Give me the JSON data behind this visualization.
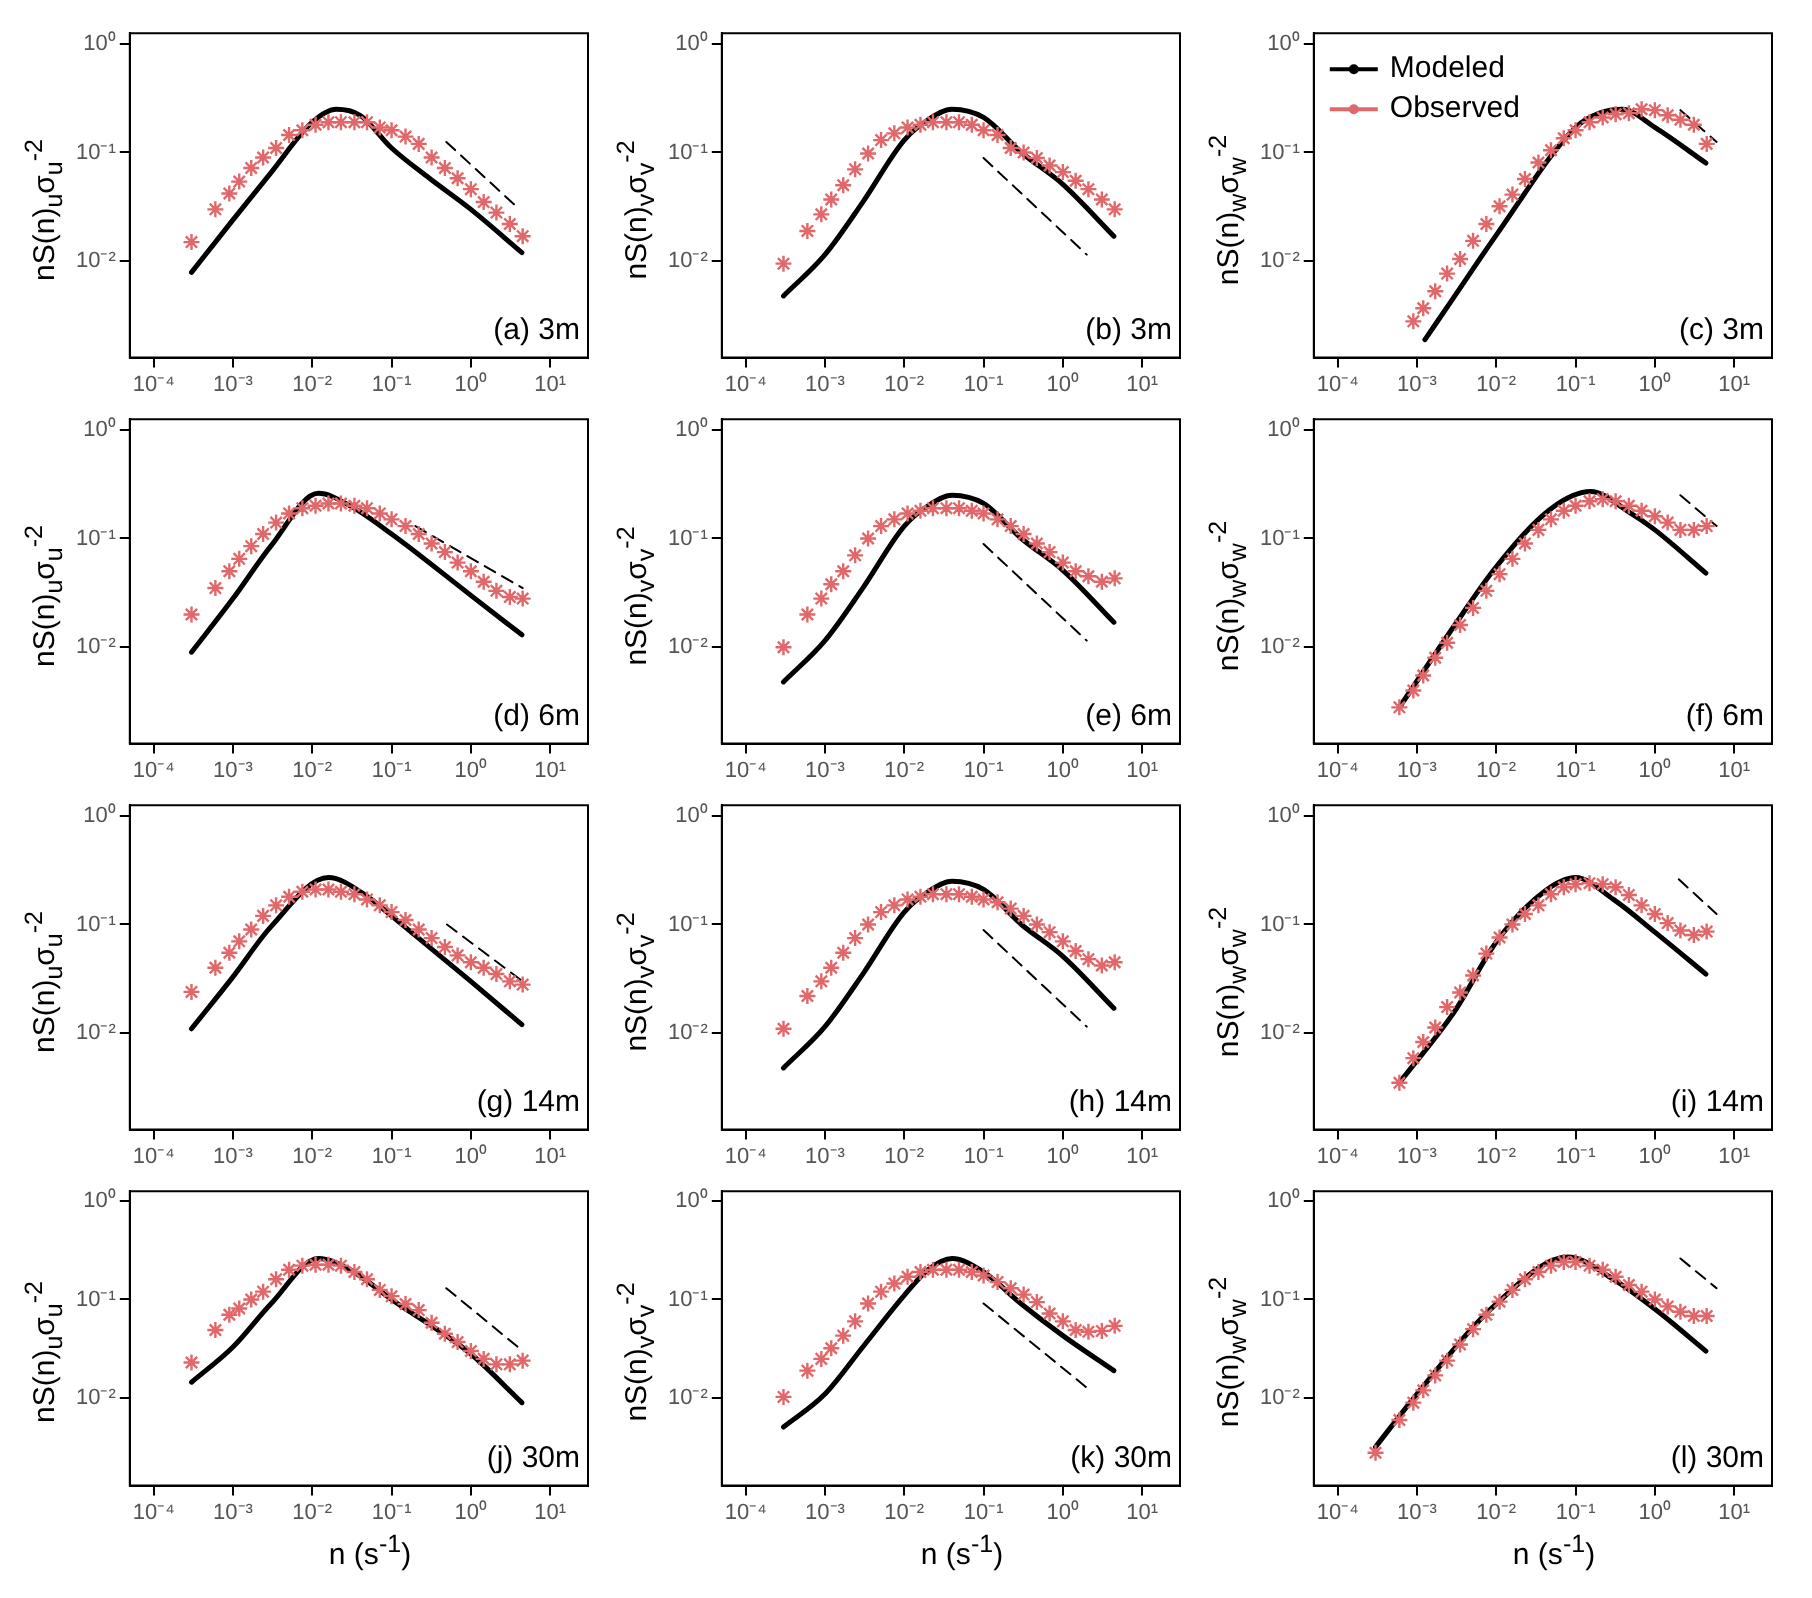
{
  "chart_data": [
    {
      "type": "line",
      "ylabel": "nS(n)$_{u}$σ$_{u}$$^{-2}$",
      "annotations": [
        "(a) 3m"
      ],
      "log": "xy",
      "xlim": [
        5e-05,
        30
      ],
      "ylim": [
        0.0013,
        1.25
      ],
      "xticks": [
        {
          "value": 0.0001,
          "label": "10⁻⁴"
        },
        {
          "value": 0.001,
          "label": "10⁻³"
        },
        {
          "value": 0.01,
          "label": "10⁻²"
        },
        {
          "value": 0.1,
          "label": "10⁻¹"
        },
        {
          "value": 1,
          "label": "10⁰"
        },
        {
          "value": 10,
          "label": "10¹"
        }
      ],
      "yticks": [
        {
          "value": 0.01,
          "label": "10⁻²"
        },
        {
          "value": 0.1,
          "label": "10⁻¹"
        },
        {
          "value": 1,
          "label": "10⁰"
        }
      ],
      "x": [
        0.0003,
        0.0006,
        0.0009,
        0.0012,
        0.0017,
        0.0024,
        0.0035,
        0.0051,
        0.0075,
        0.011,
        0.016,
        0.023,
        0.034,
        0.049,
        0.071,
        0.1,
        0.15,
        0.22,
        0.32,
        0.47,
        0.68,
        1,
        1.45,
        2.1,
        3.1,
        4.5
      ],
      "series": [
        {
          "type": "line",
          "color": "#000000",
          "marker": "none",
          "x": [
            0.0003,
            0.001,
            0.003,
            0.01,
            0.02,
            0.04,
            0.1,
            0.3,
            1,
            4.4
          ],
          "values": [
            0.0079,
            0.024,
            0.065,
            0.19,
            0.25,
            0.22,
            0.11,
            0.058,
            0.03,
            0.012
          ]
        },
        {
          "type": "scatter",
          "color": "#e0686b",
          "marker": "cross",
          "values": [
            0.015,
            0.03,
            0.042,
            0.054,
            0.072,
            0.09,
            0.11,
            0.145,
            0.16,
            0.18,
            0.19,
            0.19,
            0.19,
            0.19,
            0.17,
            0.16,
            0.14,
            0.12,
            0.09,
            0.072,
            0.058,
            0.046,
            0.035,
            0.028,
            0.022,
            0.017
          ]
        },
        {
          "type": "line",
          "color": "#000000",
          "marker": "none",
          "line_style": "dashed",
          "x": [
            0.49,
            4.1
          ],
          "values": [
            0.125,
            0.03
          ]
        }
      ]
    },
    {
      "type": "line",
      "ylabel": "nS(n)$_{v}$σ$_{v}$$^{-2}$",
      "annotations": [
        "(b) 3m"
      ],
      "log": "xy",
      "xlim": [
        5e-05,
        30
      ],
      "ylim": [
        0.0013,
        1.25
      ],
      "xticks": [
        {
          "value": 0.0001,
          "label": "10⁻⁴"
        },
        {
          "value": 0.001,
          "label": "10⁻³"
        },
        {
          "value": 0.01,
          "label": "10⁻²"
        },
        {
          "value": 0.1,
          "label": "10⁻¹"
        },
        {
          "value": 1,
          "label": "10⁰"
        },
        {
          "value": 10,
          "label": "10¹"
        }
      ],
      "yticks": [
        {
          "value": 0.01,
          "label": "10⁻²"
        },
        {
          "value": 0.1,
          "label": "10⁻¹"
        },
        {
          "value": 1,
          "label": "10⁰"
        }
      ],
      "x": [
        0.0003,
        0.0006,
        0.0009,
        0.0012,
        0.0017,
        0.0024,
        0.0035,
        0.0051,
        0.0075,
        0.011,
        0.016,
        0.023,
        0.034,
        0.049,
        0.071,
        0.1,
        0.15,
        0.22,
        0.32,
        0.47,
        0.68,
        1,
        1.45,
        2.1,
        3.1,
        4.5
      ],
      "series": [
        {
          "type": "line",
          "color": "#000000",
          "marker": "none",
          "x": [
            0.0003,
            0.001,
            0.003,
            0.01,
            0.02,
            0.04,
            0.1,
            0.3,
            1,
            4.4
          ],
          "values": [
            0.0048,
            0.0115,
            0.035,
            0.13,
            0.2,
            0.25,
            0.21,
            0.1,
            0.051,
            0.017
          ]
        },
        {
          "type": "scatter",
          "color": "#e0686b",
          "marker": "cross",
          "values": [
            0.0095,
            0.019,
            0.027,
            0.037,
            0.05,
            0.07,
            0.098,
            0.13,
            0.15,
            0.17,
            0.18,
            0.19,
            0.19,
            0.19,
            0.18,
            0.16,
            0.145,
            0.11,
            0.1,
            0.089,
            0.076,
            0.066,
            0.055,
            0.046,
            0.037,
            0.03
          ]
        },
        {
          "type": "line",
          "color": "#000000",
          "marker": "none",
          "line_style": "dashed",
          "x": [
            0.1,
            2
          ],
          "values": [
            0.089,
            0.0115
          ]
        }
      ]
    },
    {
      "type": "line",
      "ylabel": "nS(n)$_{w}$σ$_{w}$$^{-2}$",
      "annotations": [
        "(c) 3m"
      ],
      "legend": "top left",
      "log": "xy",
      "xlim": [
        5e-05,
        30
      ],
      "ylim": [
        0.0013,
        1.25
      ],
      "xticks": [
        {
          "value": 0.0001,
          "label": "10⁻⁴"
        },
        {
          "value": 0.001,
          "label": "10⁻³"
        },
        {
          "value": 0.01,
          "label": "10⁻²"
        },
        {
          "value": 0.1,
          "label": "10⁻¹"
        },
        {
          "value": 1,
          "label": "10⁰"
        },
        {
          "value": 10,
          "label": "10¹"
        }
      ],
      "yticks": [
        {
          "value": 0.01,
          "label": "10⁻²"
        },
        {
          "value": 0.1,
          "label": "10⁻¹"
        },
        {
          "value": 1,
          "label": "10⁰"
        }
      ],
      "x": [
        0.0009,
        0.0012,
        0.0017,
        0.0024,
        0.0035,
        0.0051,
        0.0075,
        0.011,
        0.016,
        0.023,
        0.034,
        0.049,
        0.071,
        0.1,
        0.15,
        0.22,
        0.32,
        0.47,
        0.68,
        1,
        1.45,
        2.1,
        3.1,
        4.5
      ],
      "series": [
        {
          "type": "line",
          "name": "Modeled",
          "color": "#000000",
          "marker": "none",
          "x": [
            0.00126,
            0.003,
            0.01,
            0.1,
            0.2,
            0.39,
            1,
            4.4
          ],
          "values": [
            0.0019,
            0.0048,
            0.0174,
            0.17,
            0.23,
            0.25,
            0.17,
            0.08
          ]
        },
        {
          "type": "scatter",
          "name": "Observed",
          "color": "#e0686b",
          "marker": "cross",
          "values": [
            0.0028,
            0.0037,
            0.0053,
            0.0077,
            0.0105,
            0.0154,
            0.022,
            0.032,
            0.041,
            0.057,
            0.081,
            0.105,
            0.135,
            0.16,
            0.19,
            0.21,
            0.225,
            0.23,
            0.25,
            0.245,
            0.22,
            0.2,
            0.18,
            0.12
          ]
        },
        {
          "type": "line",
          "color": "#000000",
          "marker": "none",
          "line_style": "dashed",
          "x": [
            2.1,
            6
          ],
          "values": [
            0.245,
            0.125
          ]
        }
      ]
    },
    {
      "type": "line",
      "ylabel": "nS(n)$_{u}$σ$_{u}$$^{-2}$",
      "annotations": [
        "(d) 6m"
      ],
      "log": "xy",
      "xlim": [
        5e-05,
        30
      ],
      "ylim": [
        0.0013,
        1.25
      ],
      "xticks": [
        {
          "value": 0.0001,
          "label": "10⁻⁴"
        },
        {
          "value": 0.001,
          "label": "10⁻³"
        },
        {
          "value": 0.01,
          "label": "10⁻²"
        },
        {
          "value": 0.1,
          "label": "10⁻¹"
        },
        {
          "value": 1,
          "label": "10⁰"
        },
        {
          "value": 10,
          "label": "10¹"
        }
      ],
      "yticks": [
        {
          "value": 0.01,
          "label": "10⁻²"
        },
        {
          "value": 0.1,
          "label": "10⁻¹"
        },
        {
          "value": 1,
          "label": "10⁰"
        }
      ],
      "x": [
        0.0003,
        0.0006,
        0.0009,
        0.0012,
        0.0017,
        0.0024,
        0.0035,
        0.0051,
        0.0075,
        0.011,
        0.016,
        0.023,
        0.034,
        0.049,
        0.071,
        0.1,
        0.15,
        0.22,
        0.32,
        0.47,
        0.68,
        1,
        1.45,
        2.1,
        3.1,
        4.5
      ],
      "series": [
        {
          "type": "line",
          "color": "#000000",
          "marker": "none",
          "x": [
            0.0003,
            0.001,
            0.003,
            0.012,
            0.03,
            0.1,
            1,
            4.4
          ],
          "values": [
            0.009,
            0.028,
            0.085,
            0.26,
            0.2,
            0.11,
            0.03,
            0.013
          ]
        },
        {
          "type": "scatter",
          "color": "#e0686b",
          "marker": "cross",
          "values": [
            0.02,
            0.035,
            0.05,
            0.065,
            0.085,
            0.11,
            0.14,
            0.17,
            0.19,
            0.2,
            0.21,
            0.21,
            0.2,
            0.19,
            0.17,
            0.15,
            0.13,
            0.11,
            0.09,
            0.075,
            0.06,
            0.05,
            0.04,
            0.033,
            0.029,
            0.028
          ]
        },
        {
          "type": "line",
          "color": "#000000",
          "marker": "none",
          "line_style": "dashed",
          "x": [
            0.2,
            4.5
          ],
          "values": [
            0.13,
            0.035
          ]
        }
      ]
    },
    {
      "type": "line",
      "ylabel": "nS(n)$_{v}$σ$_{v}$$^{-2}$",
      "annotations": [
        "(e) 6m"
      ],
      "log": "xy",
      "xlim": [
        5e-05,
        30
      ],
      "ylim": [
        0.0013,
        1.25
      ],
      "xticks": [
        {
          "value": 0.0001,
          "label": "10⁻⁴"
        },
        {
          "value": 0.001,
          "label": "10⁻³"
        },
        {
          "value": 0.01,
          "label": "10⁻²"
        },
        {
          "value": 0.1,
          "label": "10⁻¹"
        },
        {
          "value": 1,
          "label": "10⁰"
        },
        {
          "value": 10,
          "label": "10¹"
        }
      ],
      "yticks": [
        {
          "value": 0.01,
          "label": "10⁻²"
        },
        {
          "value": 0.1,
          "label": "10⁻¹"
        },
        {
          "value": 1,
          "label": "10⁰"
        }
      ],
      "x": [
        0.0003,
        0.0006,
        0.0009,
        0.0012,
        0.0017,
        0.0024,
        0.0035,
        0.0051,
        0.0075,
        0.011,
        0.016,
        0.023,
        0.034,
        0.049,
        0.071,
        0.1,
        0.15,
        0.22,
        0.32,
        0.47,
        0.68,
        1,
        1.45,
        2.1,
        3.1,
        4.5
      ],
      "series": [
        {
          "type": "line",
          "color": "#000000",
          "marker": "none",
          "x": [
            0.0003,
            0.001,
            0.003,
            0.01,
            0.02,
            0.04,
            0.1,
            0.3,
            1,
            4.4
          ],
          "values": [
            0.0048,
            0.0115,
            0.035,
            0.13,
            0.2,
            0.25,
            0.21,
            0.1,
            0.051,
            0.017
          ]
        },
        {
          "type": "scatter",
          "color": "#e0686b",
          "marker": "cross",
          "values": [
            0.01,
            0.02,
            0.028,
            0.038,
            0.05,
            0.07,
            0.1,
            0.13,
            0.15,
            0.17,
            0.18,
            0.19,
            0.19,
            0.19,
            0.18,
            0.17,
            0.15,
            0.13,
            0.11,
            0.09,
            0.075,
            0.06,
            0.05,
            0.045,
            0.04,
            0.043
          ]
        },
        {
          "type": "line",
          "color": "#000000",
          "marker": "none",
          "line_style": "dashed",
          "x": [
            0.1,
            2
          ],
          "values": [
            0.089,
            0.0115
          ]
        }
      ]
    },
    {
      "type": "line",
      "ylabel": "nS(n)$_{w}$σ$_{w}$$^{-2}$",
      "annotations": [
        "(f) 6m"
      ],
      "log": "xy",
      "xlim": [
        5e-05,
        30
      ],
      "ylim": [
        0.0013,
        1.25
      ],
      "xticks": [
        {
          "value": 0.0001,
          "label": "10⁻⁴"
        },
        {
          "value": 0.001,
          "label": "10⁻³"
        },
        {
          "value": 0.01,
          "label": "10⁻²"
        },
        {
          "value": 0.1,
          "label": "10⁻¹"
        },
        {
          "value": 1,
          "label": "10⁰"
        },
        {
          "value": 10,
          "label": "10¹"
        }
      ],
      "yticks": [
        {
          "value": 0.01,
          "label": "10⁻²"
        },
        {
          "value": 0.1,
          "label": "10⁻¹"
        },
        {
          "value": 1,
          "label": "10⁰"
        }
      ],
      "x": [
        0.0006,
        0.0009,
        0.0012,
        0.0017,
        0.0024,
        0.0035,
        0.0051,
        0.0075,
        0.011,
        0.016,
        0.023,
        0.034,
        0.049,
        0.071,
        0.1,
        0.15,
        0.22,
        0.32,
        0.47,
        0.68,
        1,
        1.45,
        2.1,
        3.1,
        4.5
      ],
      "series": [
        {
          "type": "line",
          "color": "#000000",
          "marker": "none",
          "x": [
            0.0006,
            0.003,
            0.01,
            0.05,
            0.155,
            0.5,
            1,
            4.4
          ],
          "values": [
            0.0028,
            0.016,
            0.055,
            0.19,
            0.27,
            0.17,
            0.12,
            0.048
          ]
        },
        {
          "type": "scatter",
          "color": "#e0686b",
          "marker": "cross",
          "values": [
            0.0028,
            0.004,
            0.0055,
            0.008,
            0.011,
            0.016,
            0.023,
            0.033,
            0.047,
            0.065,
            0.09,
            0.12,
            0.15,
            0.18,
            0.2,
            0.22,
            0.23,
            0.22,
            0.2,
            0.18,
            0.16,
            0.14,
            0.12,
            0.12,
            0.13
          ]
        },
        {
          "type": "line",
          "color": "#000000",
          "marker": "none",
          "line_style": "dashed",
          "x": [
            2.1,
            6
          ],
          "values": [
            0.25,
            0.13
          ]
        }
      ]
    },
    {
      "type": "line",
      "ylabel": "nS(n)$_{u}$σ$_{u}$$^{-2}$",
      "annotations": [
        "(g) 14m"
      ],
      "log": "xy",
      "xlim": [
        5e-05,
        30
      ],
      "ylim": [
        0.0013,
        1.25
      ],
      "xticks": [
        {
          "value": 0.0001,
          "label": "10⁻⁴"
        },
        {
          "value": 0.001,
          "label": "10⁻³"
        },
        {
          "value": 0.01,
          "label": "10⁻²"
        },
        {
          "value": 0.1,
          "label": "10⁻¹"
        },
        {
          "value": 1,
          "label": "10⁰"
        },
        {
          "value": 10,
          "label": "10¹"
        }
      ],
      "yticks": [
        {
          "value": 0.01,
          "label": "10⁻²"
        },
        {
          "value": 0.1,
          "label": "10⁻¹"
        },
        {
          "value": 1,
          "label": "10⁰"
        }
      ],
      "x": [
        0.0003,
        0.0006,
        0.0009,
        0.0012,
        0.0017,
        0.0024,
        0.0035,
        0.0051,
        0.0075,
        0.011,
        0.016,
        0.023,
        0.034,
        0.049,
        0.071,
        0.1,
        0.15,
        0.22,
        0.32,
        0.47,
        0.68,
        1,
        1.45,
        2.1,
        3.1,
        4.5
      ],
      "series": [
        {
          "type": "line",
          "color": "#000000",
          "marker": "none",
          "x": [
            0.0003,
            0.001,
            0.003,
            0.016,
            0.05,
            0.1,
            1,
            4.4
          ],
          "values": [
            0.011,
            0.033,
            0.095,
            0.27,
            0.18,
            0.12,
            0.03,
            0.012
          ]
        },
        {
          "type": "scatter",
          "color": "#e0686b",
          "marker": "cross",
          "values": [
            0.024,
            0.04,
            0.055,
            0.07,
            0.09,
            0.12,
            0.15,
            0.18,
            0.2,
            0.21,
            0.21,
            0.2,
            0.19,
            0.17,
            0.15,
            0.13,
            0.11,
            0.09,
            0.075,
            0.062,
            0.052,
            0.045,
            0.04,
            0.035,
            0.03,
            0.028
          ]
        },
        {
          "type": "line",
          "color": "#000000",
          "marker": "none",
          "line_style": "dashed",
          "x": [
            0.5,
            4.5
          ],
          "values": [
            0.1,
            0.03
          ]
        }
      ]
    },
    {
      "type": "line",
      "ylabel": "nS(n)$_{v}$σ$_{v}$$^{-2}$",
      "annotations": [
        "(h) 14m"
      ],
      "log": "xy",
      "xlim": [
        5e-05,
        30
      ],
      "ylim": [
        0.0013,
        1.25
      ],
      "xticks": [
        {
          "value": 0.0001,
          "label": "10⁻⁴"
        },
        {
          "value": 0.001,
          "label": "10⁻³"
        },
        {
          "value": 0.01,
          "label": "10⁻²"
        },
        {
          "value": 0.1,
          "label": "10⁻¹"
        },
        {
          "value": 1,
          "label": "10⁰"
        },
        {
          "value": 10,
          "label": "10¹"
        }
      ],
      "yticks": [
        {
          "value": 0.01,
          "label": "10⁻²"
        },
        {
          "value": 0.1,
          "label": "10⁻¹"
        },
        {
          "value": 1,
          "label": "10⁰"
        }
      ],
      "x": [
        0.0003,
        0.0006,
        0.0009,
        0.0012,
        0.0017,
        0.0024,
        0.0035,
        0.0051,
        0.0075,
        0.011,
        0.016,
        0.023,
        0.034,
        0.049,
        0.071,
        0.1,
        0.15,
        0.22,
        0.32,
        0.47,
        0.68,
        1,
        1.45,
        2.1,
        3.1,
        4.5
      ],
      "series": [
        {
          "type": "line",
          "color": "#000000",
          "marker": "none",
          "x": [
            0.0003,
            0.001,
            0.003,
            0.01,
            0.02,
            0.04,
            0.1,
            0.3,
            1,
            4.4
          ],
          "values": [
            0.0048,
            0.0115,
            0.035,
            0.13,
            0.2,
            0.25,
            0.21,
            0.1,
            0.051,
            0.017
          ]
        },
        {
          "type": "scatter",
          "color": "#e0686b",
          "marker": "cross",
          "values": [
            0.011,
            0.022,
            0.03,
            0.04,
            0.055,
            0.075,
            0.1,
            0.13,
            0.15,
            0.17,
            0.18,
            0.19,
            0.19,
            0.19,
            0.18,
            0.17,
            0.16,
            0.14,
            0.12,
            0.1,
            0.085,
            0.07,
            0.057,
            0.048,
            0.042,
            0.045
          ]
        },
        {
          "type": "line",
          "color": "#000000",
          "marker": "none",
          "line_style": "dashed",
          "x": [
            0.1,
            2
          ],
          "values": [
            0.089,
            0.0115
          ]
        }
      ]
    },
    {
      "type": "line",
      "ylabel": "nS(n)$_{w}$σ$_{w}$$^{-2}$",
      "annotations": [
        "(i) 14m"
      ],
      "log": "xy",
      "xlim": [
        5e-05,
        30
      ],
      "ylim": [
        0.0013,
        1.25
      ],
      "xticks": [
        {
          "value": 0.0001,
          "label": "10⁻⁴"
        },
        {
          "value": 0.001,
          "label": "10⁻³"
        },
        {
          "value": 0.01,
          "label": "10⁻²"
        },
        {
          "value": 0.1,
          "label": "10⁻¹"
        },
        {
          "value": 1,
          "label": "10⁰"
        },
        {
          "value": 10,
          "label": "10¹"
        }
      ],
      "yticks": [
        {
          "value": 0.01,
          "label": "10⁻²"
        },
        {
          "value": 0.1,
          "label": "10⁻¹"
        },
        {
          "value": 1,
          "label": "10⁰"
        }
      ],
      "x": [
        0.0006,
        0.0009,
        0.0012,
        0.0017,
        0.0024,
        0.0035,
        0.0051,
        0.0075,
        0.011,
        0.016,
        0.023,
        0.034,
        0.049,
        0.071,
        0.1,
        0.15,
        0.22,
        0.32,
        0.47,
        0.68,
        1,
        1.45,
        2.1,
        3.1,
        4.5
      ],
      "series": [
        {
          "type": "line",
          "color": "#000000",
          "marker": "none",
          "x": [
            0.0006,
            0.003,
            0.01,
            0.04,
            0.1,
            0.3,
            1,
            4.4
          ],
          "values": [
            0.0035,
            0.016,
            0.069,
            0.2,
            0.27,
            0.17,
            0.085,
            0.035
          ]
        },
        {
          "type": "scatter",
          "color": "#e0686b",
          "marker": "cross",
          "values": [
            0.0035,
            0.0059,
            0.0083,
            0.0113,
            0.0174,
            0.0237,
            0.034,
            0.054,
            0.076,
            0.1,
            0.125,
            0.15,
            0.19,
            0.22,
            0.235,
            0.24,
            0.235,
            0.22,
            0.187,
            0.15,
            0.125,
            0.103,
            0.088,
            0.08,
            0.086
          ]
        },
        {
          "type": "line",
          "color": "#000000",
          "marker": "none",
          "line_style": "dashed",
          "x": [
            2,
            6
          ],
          "values": [
            0.26,
            0.125
          ]
        }
      ]
    },
    {
      "type": "line",
      "ylabel": "nS(n)$_{u}$σ$_{u}$$^{-2}$",
      "xlabel": "n (s$^{-1}$)",
      "annotations": [
        "(j) 30m"
      ],
      "log": "xy",
      "xlim": [
        5e-05,
        30
      ],
      "ylim": [
        0.0013,
        1.25
      ],
      "xticks": [
        {
          "value": 0.0001,
          "label": "10⁻⁴"
        },
        {
          "value": 0.001,
          "label": "10⁻³"
        },
        {
          "value": 0.01,
          "label": "10⁻²"
        },
        {
          "value": 0.1,
          "label": "10⁻¹"
        },
        {
          "value": 1,
          "label": "10⁰"
        },
        {
          "value": 10,
          "label": "10¹"
        }
      ],
      "yticks": [
        {
          "value": 0.01,
          "label": "10⁻²"
        },
        {
          "value": 0.1,
          "label": "10⁻¹"
        },
        {
          "value": 1,
          "label": "10⁰"
        }
      ],
      "x": [
        0.0003,
        0.0006,
        0.0009,
        0.0012,
        0.0017,
        0.0024,
        0.0035,
        0.0051,
        0.0075,
        0.011,
        0.016,
        0.023,
        0.034,
        0.049,
        0.071,
        0.1,
        0.15,
        0.22,
        0.32,
        0.47,
        0.68,
        1,
        1.45,
        2.1,
        3.1,
        4.5
      ],
      "series": [
        {
          "type": "line",
          "color": "#000000",
          "marker": "none",
          "x": [
            0.0003,
            0.001,
            0.003,
            0.012,
            0.03,
            0.1,
            1,
            4.4
          ],
          "values": [
            0.0145,
            0.033,
            0.09,
            0.26,
            0.2,
            0.1,
            0.028,
            0.009
          ]
        },
        {
          "type": "scatter",
          "color": "#e0686b",
          "marker": "cross",
          "values": [
            0.023,
            0.049,
            0.07,
            0.081,
            0.1,
            0.12,
            0.16,
            0.2,
            0.22,
            0.225,
            0.225,
            0.22,
            0.19,
            0.16,
            0.125,
            0.108,
            0.09,
            0.078,
            0.058,
            0.045,
            0.037,
            0.03,
            0.025,
            0.022,
            0.022,
            0.024
          ]
        },
        {
          "type": "line",
          "color": "#000000",
          "marker": "none",
          "line_style": "dashed",
          "x": [
            0.49,
            4.1
          ],
          "values": [
            0.13,
            0.032
          ]
        }
      ]
    },
    {
      "type": "line",
      "ylabel": "nS(n)$_{v}$σ$_{v}$$^{-2}$",
      "xlabel": "n (s$^{-1}$)",
      "annotations": [
        "(k) 30m"
      ],
      "log": "xy",
      "xlim": [
        5e-05,
        30
      ],
      "ylim": [
        0.0013,
        1.25
      ],
      "xticks": [
        {
          "value": 0.0001,
          "label": "10⁻⁴"
        },
        {
          "value": 0.001,
          "label": "10⁻³"
        },
        {
          "value": 0.01,
          "label": "10⁻²"
        },
        {
          "value": 0.1,
          "label": "10⁻¹"
        },
        {
          "value": 1,
          "label": "10⁰"
        },
        {
          "value": 10,
          "label": "10¹"
        }
      ],
      "yticks": [
        {
          "value": 0.01,
          "label": "10⁻²"
        },
        {
          "value": 0.1,
          "label": "10⁻¹"
        },
        {
          "value": 1,
          "label": "10⁰"
        }
      ],
      "x": [
        0.0003,
        0.0006,
        0.0009,
        0.0012,
        0.0017,
        0.0024,
        0.0035,
        0.0051,
        0.0075,
        0.011,
        0.016,
        0.023,
        0.034,
        0.049,
        0.071,
        0.1,
        0.15,
        0.22,
        0.32,
        0.47,
        0.68,
        1,
        1.45,
        2.1,
        3.1,
        4.5
      ],
      "series": [
        {
          "type": "line",
          "color": "#000000",
          "marker": "none",
          "x": [
            0.0003,
            0.001,
            0.003,
            0.01,
            0.02,
            0.04,
            0.1,
            0.3,
            1,
            4.4
          ],
          "values": [
            0.0051,
            0.011,
            0.033,
            0.11,
            0.2,
            0.26,
            0.19,
            0.09,
            0.043,
            0.019
          ]
        },
        {
          "type": "scatter",
          "color": "#e0686b",
          "marker": "cross",
          "values": [
            0.0103,
            0.019,
            0.025,
            0.032,
            0.043,
            0.06,
            0.091,
            0.12,
            0.145,
            0.17,
            0.19,
            0.2,
            0.2,
            0.2,
            0.19,
            0.175,
            0.15,
            0.13,
            0.112,
            0.094,
            0.072,
            0.06,
            0.049,
            0.047,
            0.048,
            0.054
          ]
        },
        {
          "type": "line",
          "color": "#000000",
          "marker": "none",
          "line_style": "dashed",
          "x": [
            0.1,
            1.95
          ],
          "values": [
            0.091,
            0.013
          ]
        }
      ]
    },
    {
      "type": "line",
      "ylabel": "nS(n)$_{w}$σ$_{w}$$^{-2}$",
      "xlabel": "n (s$^{-1}$)",
      "annotations": [
        "(l) 30m"
      ],
      "log": "xy",
      "xlim": [
        5e-05,
        30
      ],
      "ylim": [
        0.0013,
        1.25
      ],
      "xticks": [
        {
          "value": 0.0001,
          "label": "10⁻⁴"
        },
        {
          "value": 0.001,
          "label": "10⁻³"
        },
        {
          "value": 0.01,
          "label": "10⁻²"
        },
        {
          "value": 0.1,
          "label": "10⁻¹"
        },
        {
          "value": 1,
          "label": "10⁰"
        },
        {
          "value": 10,
          "label": "10¹"
        }
      ],
      "yticks": [
        {
          "value": 0.01,
          "label": "10⁻²"
        },
        {
          "value": 0.1,
          "label": "10⁻¹"
        },
        {
          "value": 1,
          "label": "10⁰"
        }
      ],
      "x": [
        0.0003,
        0.0006,
        0.0009,
        0.0012,
        0.0017,
        0.0024,
        0.0035,
        0.0051,
        0.0075,
        0.011,
        0.016,
        0.023,
        0.034,
        0.049,
        0.071,
        0.1,
        0.15,
        0.22,
        0.32,
        0.47,
        0.68,
        1,
        1.45,
        2.1,
        3.1,
        4.5
      ],
      "series": [
        {
          "type": "line",
          "color": "#000000",
          "marker": "none",
          "x": [
            0.0003,
            0.001,
            0.01,
            0.08,
            0.3,
            1,
            4.4
          ],
          "values": [
            0.0032,
            0.011,
            0.09,
            0.27,
            0.16,
            0.08,
            0.03
          ]
        },
        {
          "type": "scatter",
          "color": "#e0686b",
          "marker": "cross",
          "values": [
            0.0028,
            0.006,
            0.009,
            0.012,
            0.017,
            0.024,
            0.035,
            0.05,
            0.07,
            0.095,
            0.125,
            0.16,
            0.19,
            0.22,
            0.24,
            0.24,
            0.22,
            0.2,
            0.17,
            0.14,
            0.12,
            0.1,
            0.085,
            0.075,
            0.068,
            0.068
          ]
        },
        {
          "type": "line",
          "color": "#000000",
          "marker": "none",
          "line_style": "dashed",
          "x": [
            2.1,
            6
          ],
          "values": [
            0.26,
            0.13
          ]
        }
      ]
    }
  ]
}
